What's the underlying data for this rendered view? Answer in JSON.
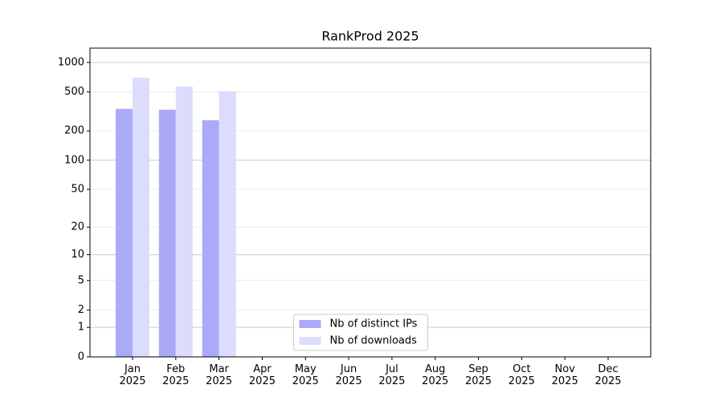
{
  "chart_data": {
    "type": "bar",
    "title": "RankProd 2025",
    "categories": [
      "Jan\n2025",
      "Feb\n2025",
      "Mar\n2025",
      "Apr\n2025",
      "May\n2025",
      "Jun\n2025",
      "Jul\n2025",
      "Aug\n2025",
      "Sep\n2025",
      "Oct\n2025",
      "Nov\n2025",
      "Dec\n2025"
    ],
    "series": [
      {
        "name": "Nb of distinct IPs",
        "color": "#aaaaf9",
        "values": [
          336,
          329,
          257,
          null,
          null,
          null,
          null,
          null,
          null,
          null,
          null,
          null
        ]
      },
      {
        "name": "Nb of downloads",
        "color": "#dcdcfc",
        "values": [
          699,
          568,
          507,
          null,
          null,
          null,
          null,
          null,
          null,
          null,
          null,
          null
        ]
      }
    ],
    "yscale": "log1p",
    "ylim": [
      0,
      1400
    ],
    "yticks": [
      0,
      1,
      2,
      5,
      10,
      20,
      50,
      100,
      200,
      500,
      1000
    ],
    "grid": true,
    "legend": "lower center"
  }
}
